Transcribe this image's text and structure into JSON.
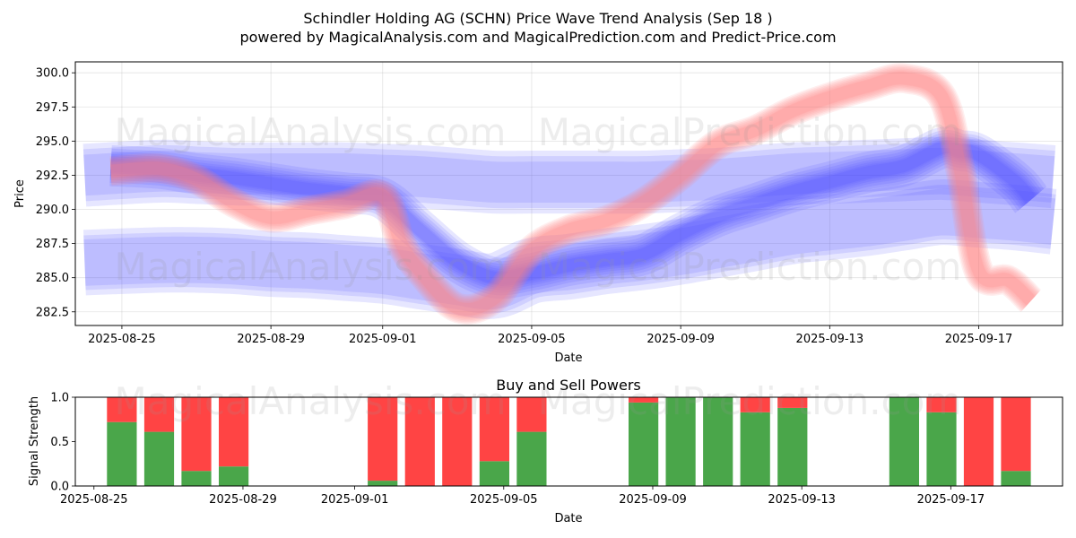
{
  "chart_data": [
    {
      "type": "area",
      "title_line1": "Schindler Holding AG (SCHN) Price Wave Trend Analysis (Sep 18 )",
      "title_line2": "powered by MagicalAnalysis.com and MagicalPrediction.com and Predict-Price.com",
      "xlabel": "Date",
      "ylabel": "Price",
      "xlim": [
        -1.25,
        25.25
      ],
      "ylim": [
        281.5,
        300.8
      ],
      "grid": true,
      "x_origin_date": "2025-08-25",
      "x_ticks": [
        {
          "x": 0,
          "label": "2025-08-25"
        },
        {
          "x": 4,
          "label": "2025-08-29"
        },
        {
          "x": 7,
          "label": "2025-09-01"
        },
        {
          "x": 11,
          "label": "2025-09-05"
        },
        {
          "x": 15,
          "label": "2025-09-09"
        },
        {
          "x": 19,
          "label": "2025-09-13"
        },
        {
          "x": 23,
          "label": "2025-09-17"
        }
      ],
      "y_ticks": [
        282.5,
        285.0,
        287.5,
        290.0,
        292.5,
        295.0,
        297.5,
        300.0
      ],
      "y_tick_labels": [
        "282.5",
        "285.0",
        "287.5",
        "290.0",
        "292.5",
        "295.0",
        "297.5",
        "300.0"
      ],
      "series": [
        {
          "name": "predicted-wave",
          "color": "#ff8080",
          "kind": "band",
          "x": [
            -0.3,
            1,
            2,
            3,
            4,
            5,
            6,
            7,
            7.5,
            8,
            9,
            10,
            11,
            12,
            13,
            14,
            15,
            16,
            17,
            18,
            19,
            20,
            21,
            22,
            22.5,
            23,
            23.8,
            24.4
          ],
          "y": [
            292.8,
            293.0,
            292.2,
            290.5,
            289.4,
            289.9,
            290.4,
            291.0,
            287.5,
            285.5,
            282.8,
            283.5,
            287.0,
            288.5,
            289.2,
            290.5,
            292.5,
            294.8,
            295.8,
            297.2,
            298.2,
            299.0,
            299.6,
            298.3,
            293.0,
            285.5,
            284.8,
            283.3
          ],
          "widths": [
            0.9,
            1.0,
            1.2,
            1.4,
            1.6,
            1.8,
            2.0,
            2.2
          ]
        },
        {
          "name": "wave-upper",
          "color": "#5050ff",
          "kind": "band",
          "x": [
            -0.3,
            1,
            2,
            3,
            4,
            5,
            6,
            7,
            8,
            9,
            10,
            11,
            12,
            13,
            14,
            15,
            16,
            17,
            18,
            19,
            20,
            21,
            22,
            22.5,
            23,
            24,
            24.4
          ],
          "y": [
            293.2,
            293.0,
            292.6,
            292.3,
            291.9,
            291.5,
            291.2,
            290.8,
            288.5,
            286.2,
            285.0,
            285.3,
            285.9,
            286.3,
            286.7,
            288.2,
            289.5,
            290.4,
            291.3,
            292.0,
            292.7,
            293.2,
            294.5,
            294.3,
            294.0,
            292.0,
            290.7
          ],
          "widths": [
            0.9,
            1.1,
            1.4,
            1.7,
            2.1,
            2.5,
            3.0
          ]
        },
        {
          "name": "wave-lower",
          "color": "#5050ff",
          "kind": "band",
          "x": [
            -1,
            1,
            2,
            3,
            4,
            5,
            6,
            7,
            8,
            9,
            10,
            11,
            12,
            13,
            14,
            15,
            16,
            17,
            18,
            19,
            20,
            21,
            22,
            23,
            24,
            25
          ],
          "y": [
            286.1,
            286.3,
            286.3,
            286.2,
            286.0,
            285.9,
            285.7,
            285.5,
            285.1,
            284.7,
            284.4,
            285.5,
            285.8,
            286.2,
            286.5,
            286.9,
            287.4,
            287.9,
            288.4,
            288.7,
            289.0,
            289.4,
            289.8,
            289.6,
            289.4,
            289.1
          ],
          "widths": [
            3.4,
            4.0,
            4.8
          ]
        },
        {
          "name": "wave-top",
          "color": "#5050ff",
          "kind": "band",
          "x": [
            -1,
            1,
            2,
            3,
            4,
            5,
            6,
            7,
            8,
            9,
            10,
            11,
            12,
            13,
            14,
            15,
            16,
            17,
            18,
            19,
            20,
            21,
            22,
            23,
            24,
            25
          ],
          "y": [
            292.5,
            292.8,
            292.7,
            292.6,
            292.6,
            292.6,
            292.6,
            292.5,
            292.4,
            292.2,
            292.0,
            292.0,
            292.0,
            292.0,
            292.0,
            292.1,
            292.2,
            292.4,
            292.6,
            292.7,
            292.8,
            292.9,
            293.0,
            292.8,
            292.6,
            292.4
          ],
          "widths": [
            3.0,
            3.8,
            4.6
          ]
        }
      ]
    },
    {
      "type": "bar",
      "title": "Buy and Sell Powers",
      "xlabel": "Date",
      "ylabel": "Signal Strength",
      "xlim": [
        -1.25,
        25.25
      ],
      "ylim": [
        0,
        1
      ],
      "y_ticks": [
        0,
        0.5,
        1.0
      ],
      "y_tick_labels": [
        "0.0",
        "0.5",
        "1.0"
      ],
      "x_ticks": [
        {
          "x": -0.75,
          "label": "2025-08-25"
        },
        {
          "x": 3.25,
          "label": "2025-08-29"
        },
        {
          "x": 6.25,
          "label": "2025-09-01"
        },
        {
          "x": 10.25,
          "label": "2025-09-05"
        },
        {
          "x": 14.25,
          "label": "2025-09-09"
        },
        {
          "x": 18.25,
          "label": "2025-09-13"
        },
        {
          "x": 22.25,
          "label": "2025-09-17"
        }
      ],
      "buy_color": "#4aa64a",
      "sell_color": "#ff4444",
      "x": [
        0,
        1,
        2,
        3,
        7,
        8,
        9,
        10,
        11,
        14,
        15,
        16,
        17,
        18,
        21,
        22,
        23,
        24
      ],
      "buy": [
        0.72,
        0.61,
        0.17,
        0.22,
        0.06,
        0.0,
        0.0,
        0.28,
        0.61,
        0.94,
        1.0,
        1.0,
        0.83,
        0.88,
        1.0,
        0.83,
        0.0,
        0.17
      ],
      "sell": [
        0.28,
        0.39,
        0.83,
        0.78,
        0.94,
        1.0,
        1.0,
        0.72,
        0.39,
        0.06,
        0.0,
        0.0,
        0.17,
        0.12,
        0.0,
        0.17,
        1.0,
        0.83
      ]
    }
  ],
  "watermarks": [
    "MagicalAnalysis.com",
    "MagicalPrediction.com"
  ]
}
